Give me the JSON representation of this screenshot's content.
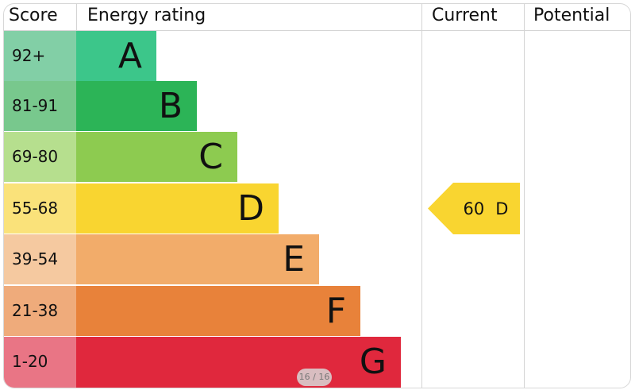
{
  "headers": {
    "score": "Score",
    "energy_rating": "Energy rating",
    "current": "Current",
    "potential": "Potential"
  },
  "ratings": [
    {
      "score": "92+",
      "letter": "A",
      "bar_color": "#3cc68a",
      "score_bg": "#82cfa6"
    },
    {
      "score": "81-91",
      "letter": "B",
      "bar_color": "#2cb457",
      "score_bg": "#78c88d"
    },
    {
      "score": "69-80",
      "letter": "C",
      "bar_color": "#8dcb50",
      "score_bg": "#b6df8e"
    },
    {
      "score": "55-68",
      "letter": "D",
      "bar_color": "#f9d530",
      "score_bg": "#fae27a"
    },
    {
      "score": "39-54",
      "letter": "E",
      "bar_color": "#f2ac6a",
      "score_bg": "#f5c9a0"
    },
    {
      "score": "21-38",
      "letter": "F",
      "bar_color": "#e8823a",
      "score_bg": "#efab7b"
    },
    {
      "score": "1-20",
      "letter": "G",
      "bar_color": "#e0283d",
      "score_bg": "#e97585"
    }
  ],
  "current": {
    "value": "60",
    "letter": "D",
    "color": "#f9d530"
  },
  "pager": "16 / 16"
}
